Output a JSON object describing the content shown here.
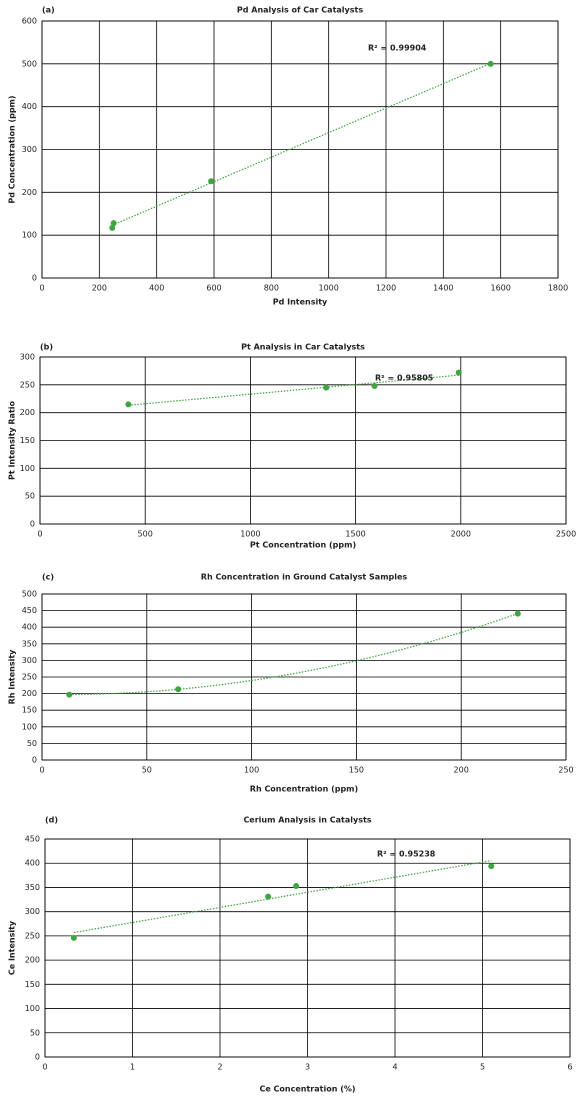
{
  "chart_data": [
    {
      "type": "scatter",
      "panel_label": "(a)",
      "title": "Pd Analysis of Car Catalysts",
      "x_label": "Pd Intensity",
      "y_label": "Pd Concentration (ppm)",
      "x": [
        245,
        250,
        590,
        1565
      ],
      "values": [
        117,
        128,
        226,
        500
      ],
      "color": "#3fa53f",
      "trendline": "linear",
      "annotation": "R² = 0.99904",
      "xlim": [
        0,
        1800
      ],
      "xticks": [
        0,
        200,
        400,
        600,
        800,
        1000,
        1200,
        1400,
        1600,
        1800
      ],
      "ylim": [
        0,
        600
      ],
      "yticks": [
        0,
        100,
        200,
        300,
        400,
        500,
        600
      ],
      "grid": true
    },
    {
      "type": "scatter",
      "panel_label": "(b)",
      "title": "Pt Analysis in Car Catalysts",
      "x_label": "Pt Concentration (ppm)",
      "y_label": "Pt Intensity Ratio",
      "x": [
        420,
        1360,
        1590,
        1990
      ],
      "values": [
        215,
        245,
        248,
        272
      ],
      "color": "#3fa53f",
      "trendline": "linear",
      "annotation": "R² = 0.95805",
      "xlim": [
        0,
        2500
      ],
      "xticks": [
        0,
        500,
        1000,
        1500,
        2000,
        2500
      ],
      "ylim": [
        0,
        300
      ],
      "yticks": [
        0,
        50,
        100,
        150,
        200,
        250,
        300
      ],
      "grid": true
    },
    {
      "type": "scatter",
      "panel_label": "(c)",
      "title": "Rh Concentration in Ground Catalyst Samples",
      "x_label": "Rh Concentration (ppm)",
      "y_label": "Rh Intensity",
      "x": [
        13,
        65,
        227
      ],
      "values": [
        197,
        213,
        441
      ],
      "color": "#3fa53f",
      "trendline": "polynomial",
      "xlim": [
        0,
        250
      ],
      "xticks": [
        0,
        50,
        100,
        150,
        200,
        250
      ],
      "ylim": [
        0,
        500
      ],
      "yticks": [
        0,
        50,
        100,
        150,
        200,
        250,
        300,
        350,
        400,
        450,
        500
      ],
      "grid": true
    },
    {
      "type": "scatter",
      "panel_label": "(d)",
      "title": "Cerium Analysis in Catalysts",
      "x_label": "Ce Concentration (%)",
      "y_label": "Ce Intensity",
      "x": [
        0.33,
        2.55,
        2.87,
        5.1
      ],
      "values": [
        246,
        331,
        353,
        394
      ],
      "color": "#3fa53f",
      "trendline": "linear",
      "annotation": "R² = 0.95238",
      "xlim": [
        0,
        6
      ],
      "xticks": [
        0,
        1,
        2,
        3,
        4,
        5,
        6
      ],
      "ylim": [
        0,
        450
      ],
      "yticks": [
        0,
        50,
        100,
        150,
        200,
        250,
        300,
        350,
        400,
        450
      ],
      "grid": true
    }
  ]
}
